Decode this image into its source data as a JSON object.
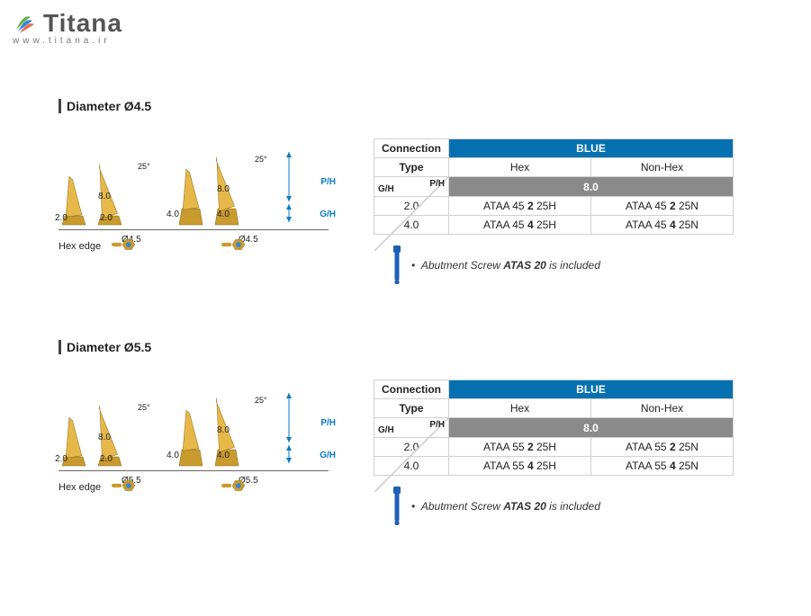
{
  "logo": {
    "name": "Titana",
    "url": "www.titana.ir"
  },
  "sections": [
    {
      "title": "Diameter Ø4.5",
      "diagram": {
        "angle": "25°",
        "ph": "8.0",
        "gh_values": [
          "2.0",
          "4.0"
        ],
        "diameter": "Ø4.5",
        "ph_label": "P/H",
        "gh_label": "G/H",
        "hex_edge": "Hex edge"
      },
      "table": {
        "connection_label": "Connection",
        "connection_value": "BLUE",
        "type_label": "Type",
        "types": [
          "Hex",
          "Non-Hex"
        ],
        "gh_label": "G/H",
        "ph_label": "P/H",
        "ph_value": "8.0",
        "rows": [
          {
            "gh": "2.0",
            "hex": [
              "ATAA 45 ",
              "2",
              " 25H"
            ],
            "nonhex": [
              "ATAA 45 ",
              "2",
              " 25N"
            ]
          },
          {
            "gh": "4.0",
            "hex": [
              "ATAA 45 ",
              "4",
              " 25H"
            ],
            "nonhex": [
              "ATAA 45 ",
              "4",
              " 25N"
            ]
          }
        ]
      },
      "note": {
        "prefix": "Abutment Screw ",
        "bold": "ATAS 20",
        "suffix": " is included"
      }
    },
    {
      "title": "Diameter Ø5.5",
      "diagram": {
        "angle": "25°",
        "ph": "8.0",
        "gh_values": [
          "2.0",
          "4.0"
        ],
        "diameter": "Ø5.5",
        "ph_label": "P/H",
        "gh_label": "G/H",
        "hex_edge": "Hex edge"
      },
      "table": {
        "connection_label": "Connection",
        "connection_value": "BLUE",
        "type_label": "Type",
        "types": [
          "Hex",
          "Non-Hex"
        ],
        "gh_label": "G/H",
        "ph_label": "P/H",
        "ph_value": "8.0",
        "rows": [
          {
            "gh": "2.0",
            "hex": [
              "ATAA 55 ",
              "2",
              " 25H"
            ],
            "nonhex": [
              "ATAA 55 ",
              "2",
              " 25N"
            ]
          },
          {
            "gh": "4.0",
            "hex": [
              "ATAA 55 ",
              "4",
              " 25H"
            ],
            "nonhex": [
              "ATAA 55 ",
              "4",
              " 25N"
            ]
          }
        ]
      },
      "note": {
        "prefix": "Abutment Screw ",
        "bold": "ATAS 20",
        "suffix": " is included"
      }
    }
  ],
  "colors": {
    "blue_header": "#0571b0",
    "gray_header": "#8a8a8a",
    "gold1": "#e6b84a",
    "gold2": "#b8860b",
    "screw_blue": "#1e5fb8"
  }
}
